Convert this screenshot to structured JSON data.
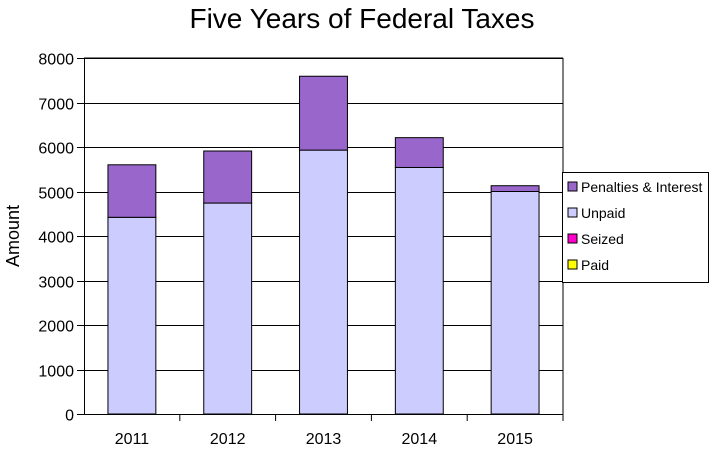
{
  "chart_data": {
    "type": "bar",
    "stacked": true,
    "title": "Five Years of Federal Taxes",
    "xlabel": "",
    "ylabel": "Amount",
    "ylim": [
      0,
      8000
    ],
    "yticks": [
      0,
      1000,
      2000,
      3000,
      4000,
      5000,
      6000,
      7000,
      8000
    ],
    "categories": [
      "2011",
      "2012",
      "2013",
      "2014",
      "2015"
    ],
    "grid": true,
    "legend_position": "right",
    "series": [
      {
        "name": "Paid",
        "color": "#ffff00",
        "values": [
          0,
          0,
          0,
          0,
          0
        ]
      },
      {
        "name": "Seized",
        "color": "#ff00cc",
        "values": [
          0,
          0,
          0,
          0,
          0
        ]
      },
      {
        "name": "Unpaid",
        "color": "#ccccff",
        "values": [
          4420,
          4740,
          5930,
          5540,
          5000
        ]
      },
      {
        "name": "Penalties & Interest",
        "color": "#9966cc",
        "values": [
          1180,
          1170,
          1660,
          670,
          130
        ]
      }
    ],
    "legend_order": [
      "Penalties & Interest",
      "Unpaid",
      "Seized",
      "Paid"
    ]
  }
}
